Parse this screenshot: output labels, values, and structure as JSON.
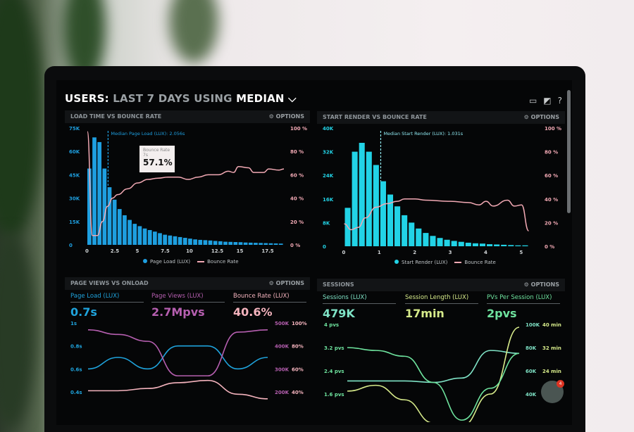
{
  "header": {
    "title_prefix": "USERS:",
    "title_mid": "LAST 7 DAYS USING",
    "title_end": "MEDIAN",
    "chevron": "⌵",
    "icons": [
      "monitor-icon",
      "chart-icon",
      "help-icon"
    ]
  },
  "options_label": "OPTIONS",
  "panels": {
    "load": {
      "title": "LOAD TIME VS BOUNCE RATE",
      "median_label": "Median Page Load (LUX): 2.056s",
      "tooltip": {
        "title": "Bounce Rate",
        "sub": "7s",
        "value": "57.1%"
      },
      "legend": [
        "Page Load (LUX)",
        "Bounce Rate"
      ]
    },
    "render": {
      "title": "START RENDER VS BOUNCE RATE",
      "median_label": "Median Start Render (LUX): 1.031s",
      "legend": [
        "Start Render (LUX)",
        "Bounce Rate"
      ]
    },
    "pageviews": {
      "title": "PAGE VIEWS VS ONLOAD",
      "kpis": [
        {
          "label": "Page Load (LUX)",
          "value": "0.7s",
          "color": "#1fa3dc"
        },
        {
          "label": "Page Views (LUX)",
          "value": "2.7Mpvs",
          "color": "#b65fb0"
        },
        {
          "label": "Bounce Rate (LUX)",
          "value": "40.6%",
          "color": "#f4b3bd"
        }
      ]
    },
    "sessions": {
      "title": "SESSIONS",
      "kpis": [
        {
          "label": "Sessions (LUX)",
          "value": "479K",
          "color": "#7fe3c6"
        },
        {
          "label": "Session Length (LUX)",
          "value": "17min",
          "color": "#d6ea8a"
        },
        {
          "label": "PVs Per Session (LUX)",
          "value": "2pvs",
          "color": "#6ee39e"
        }
      ]
    }
  },
  "chat_badge": "4",
  "chart_data": [
    {
      "type": "bar",
      "title": "LOAD TIME VS BOUNCE RATE",
      "xlim": [
        0,
        19.5
      ],
      "xticks": [
        "0",
        "2.5",
        "5",
        "7.5",
        "10",
        "12.5",
        "15",
        "17.5"
      ],
      "ylim": [
        0,
        75000
      ],
      "yticks": [
        "0",
        "15K",
        "30K",
        "45K",
        "60K",
        "75K"
      ],
      "y2lim": [
        0,
        100
      ],
      "y2ticks": [
        "0 %",
        "20 %",
        "40 %",
        "60 %",
        "80 %",
        "100 %"
      ],
      "median": 2.056,
      "bar_width": 0.5,
      "bars_x": [
        0,
        0.5,
        1,
        1.5,
        2,
        2.5,
        3,
        3.5,
        4,
        4.5,
        5,
        5.5,
        6,
        6.5,
        7,
        7.5,
        8,
        8.5,
        9,
        9.5,
        10,
        10.5,
        11,
        11.5,
        12,
        12.5,
        13,
        13.5,
        14,
        14.5,
        15,
        15.5,
        16,
        16.5,
        17,
        17.5,
        18,
        18.5,
        19
      ],
      "bars_y": [
        49000,
        69000,
        66000,
        49000,
        37000,
        29000,
        23000,
        19000,
        16000,
        13500,
        12000,
        10500,
        9500,
        8500,
        7500,
        6500,
        6000,
        5500,
        5000,
        4500,
        4000,
        3500,
        3200,
        3000,
        2800,
        2500,
        2300,
        2000,
        1900,
        1800,
        1700,
        1500,
        1400,
        1300,
        1200,
        1100,
        1000,
        900,
        800
      ],
      "series": [
        {
          "name": "Page Load (LUX)",
          "color": "#1e9fe0"
        },
        {
          "name": "Bounce Rate",
          "color": "#f2a9b4",
          "x": [
            0,
            0.5,
            1,
            1.5,
            2,
            2.5,
            3,
            4,
            5,
            6,
            7,
            8,
            9,
            10,
            11,
            12,
            13,
            14,
            14.5,
            15,
            16,
            16.5,
            17.5,
            18,
            19,
            19.5
          ],
          "y": [
            97,
            8,
            8,
            20,
            33,
            40,
            43,
            48,
            53,
            56,
            57.1,
            58,
            58,
            56,
            58,
            60,
            60,
            63,
            62,
            67,
            66,
            62,
            62,
            65,
            64,
            65
          ]
        }
      ]
    },
    {
      "type": "bar",
      "title": "START RENDER VS BOUNCE RATE",
      "xlim": [
        -0.05,
        5.25
      ],
      "xticks": [
        "0",
        "1",
        "2",
        "3",
        "4",
        "5"
      ],
      "ylim": [
        0,
        40000
      ],
      "yticks": [
        "0",
        "8K",
        "16K",
        "24K",
        "32K",
        "40K"
      ],
      "y2lim": [
        0,
        100
      ],
      "y2ticks": [
        "0 %",
        "20 %",
        "40 %",
        "60 %",
        "80 %",
        "100 %"
      ],
      "median": 1.031,
      "bar_width": 0.2,
      "bars_x": [
        0.1,
        0.3,
        0.5,
        0.7,
        0.9,
        1.1,
        1.3,
        1.5,
        1.7,
        1.9,
        2.1,
        2.3,
        2.5,
        2.7,
        2.9,
        3.1,
        3.3,
        3.5,
        3.7,
        3.9,
        4.1,
        4.3,
        4.5,
        4.7,
        4.9,
        5.1
      ],
      "bars_y": [
        13000,
        32000,
        35000,
        32000,
        27500,
        22000,
        17500,
        13500,
        10500,
        8000,
        6000,
        4500,
        3500,
        2800,
        2200,
        1800,
        1500,
        1200,
        1000,
        900,
        700,
        600,
        500,
        400,
        300,
        300
      ],
      "series": [
        {
          "name": "Start Render (LUX)",
          "color": "#22d3e6"
        },
        {
          "name": "Bounce Rate",
          "color": "#f2a9b4",
          "x": [
            0,
            0.2,
            0.4,
            0.6,
            0.9,
            1.2,
            1.5,
            1.7,
            2,
            2.3,
            3,
            3.5,
            3.8,
            4,
            4.2,
            4.6,
            4.8,
            5,
            5.2
          ],
          "y": [
            19,
            14,
            16,
            24,
            33,
            36,
            38,
            40,
            40,
            39,
            38,
            37,
            35,
            38,
            34,
            39,
            34,
            35,
            13
          ]
        }
      ]
    },
    {
      "type": "line",
      "title": "PAGE VIEWS VS ONLOAD",
      "yticks": [
        "0.4s",
        "0.6s",
        "0.8s",
        "1s"
      ],
      "ylim": [
        0.4,
        1
      ],
      "y2ticks": [
        "200K",
        "300K",
        "400K",
        "500K"
      ],
      "y3ticks": [
        "40%",
        "60%",
        "80%",
        "100%"
      ],
      "series": [
        {
          "name": "Page Load (LUX)",
          "color": "#1fa3dc",
          "y": [
            0.6,
            0.7,
            0.6,
            0.8,
            0.8,
            0.6,
            0.7
          ]
        },
        {
          "name": "Page Views (LUX)",
          "color": "#b65fb0",
          "y": [
            470000,
            450000,
            420000,
            270000,
            270000,
            460000,
            470000
          ]
        },
        {
          "name": "Bounce Rate (LUX)",
          "color": "#f4b3bd",
          "y": [
            41,
            41,
            43,
            48,
            50,
            38,
            34
          ]
        }
      ]
    },
    {
      "type": "line",
      "title": "SESSIONS",
      "yticks": [
        "1.6 pvs",
        "2.4 pvs",
        "3.2 pvs",
        "4 pvs"
      ],
      "ylim": [
        0.8,
        4
      ],
      "y2ticks": [
        "40K",
        "60K",
        "80K",
        "100K"
      ],
      "y3ticks": [
        "16 min",
        "24 min",
        "32 min",
        "40 min"
      ],
      "series": [
        {
          "name": "Sessions (LUX)",
          "color": "#7fe3c6",
          "y": [
            2.05,
            2.05,
            2.05,
            2.0,
            2.15,
            3.1,
            3.0
          ]
        },
        {
          "name": "Session Length (LUX)",
          "color": "#d6ea8a",
          "y": [
            1.7,
            1.9,
            1.4,
            0.6,
            0.5,
            1.6,
            3.9
          ]
        },
        {
          "name": "PVs Per Session (LUX)",
          "color": "#6ee39e",
          "y": [
            3.2,
            3.1,
            2.9,
            2.0,
            0.7,
            1.8,
            3.0
          ]
        }
      ]
    }
  ]
}
